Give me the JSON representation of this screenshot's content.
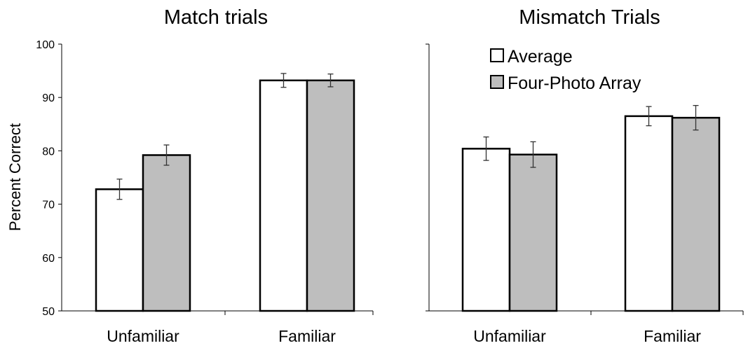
{
  "chart_data": [
    {
      "type": "bar",
      "title": "Match trials",
      "ylabel": "Percent Correct",
      "xlabel": "",
      "ylim": [
        50,
        100
      ],
      "yticks": [
        50,
        60,
        70,
        80,
        90,
        100
      ],
      "categories": [
        "Unfamiliar",
        "Familiar"
      ],
      "series": [
        {
          "name": "Average",
          "color": "#ffffff",
          "values": [
            72.8,
            93.2
          ],
          "errors": [
            1.9,
            1.3
          ]
        },
        {
          "name": "Four-Photo Array",
          "color": "#bebebe",
          "values": [
            79.2,
            93.2
          ],
          "errors": [
            1.9,
            1.2
          ]
        }
      ],
      "legend": "none",
      "grid": false
    },
    {
      "type": "bar",
      "title": "Mismatch Trials",
      "ylabel": "",
      "xlabel": "",
      "ylim": [
        50,
        100
      ],
      "categories": [
        "Unfamiliar",
        "Familiar"
      ],
      "series": [
        {
          "name": "Average",
          "color": "#ffffff",
          "values": [
            80.4,
            86.5
          ],
          "errors": [
            2.2,
            1.8
          ]
        },
        {
          "name": "Four-Photo Array",
          "color": "#bebebe",
          "values": [
            79.3,
            86.2
          ],
          "errors": [
            2.4,
            2.3
          ]
        }
      ],
      "legend": "top-right",
      "grid": false
    }
  ]
}
